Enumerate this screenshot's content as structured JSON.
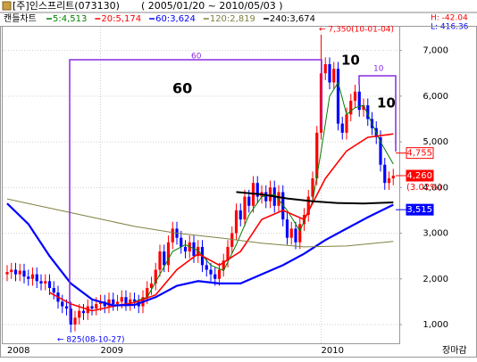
{
  "chart_data": {
    "type": "candlestick",
    "title": "[주]인스프리트(073130)",
    "subtitle": "( 2005/01/20 ~ 2010/05/03 )",
    "chart_label": "캔들차트",
    "stats": [
      "H: -42.04",
      "L: 416.36"
    ],
    "corner_label": "장마감",
    "categories": [
      "2008",
      null,
      null,
      null,
      null,
      null,
      null,
      null,
      null,
      null,
      null,
      null,
      null,
      null,
      null,
      null,
      null,
      null,
      null,
      null,
      null,
      null,
      "2009",
      null,
      null,
      null,
      null,
      null,
      null,
      null,
      null,
      null,
      null,
      null,
      null,
      null,
      null,
      null,
      null,
      null,
      null,
      null,
      null,
      null,
      null,
      null,
      null,
      null,
      null,
      null,
      null,
      null,
      null,
      null,
      null,
      null,
      null,
      null,
      null,
      null,
      null,
      null,
      null,
      null,
      null,
      null,
      null,
      null,
      null,
      null,
      null,
      null,
      null,
      null,
      "2010",
      null,
      null,
      null,
      null,
      null,
      null,
      null,
      null,
      null,
      null,
      null,
      null,
      null,
      null,
      null,
      null,
      null
    ],
    "ohlc": {
      "open": [
        2100,
        2150,
        2200,
        2100,
        2180,
        2050,
        2000,
        2100,
        1950,
        1900,
        1950,
        1800,
        1700,
        1500,
        1400,
        1350,
        1000,
        1150,
        1300,
        1250,
        1400,
        1350,
        1450,
        1500,
        1400,
        1550,
        1450,
        1500,
        1600,
        1450,
        1550,
        1500,
        1400,
        1600,
        1800,
        1900,
        2200,
        2600,
        2300,
        2800,
        3100,
        2900,
        2700,
        2600,
        2800,
        2500,
        2700,
        2300,
        2200,
        2100,
        2000,
        2200,
        2400,
        2700,
        3000,
        3500,
        3300,
        3800,
        3600,
        4100,
        3800,
        3900,
        3700,
        4000,
        3600,
        3900,
        3300,
        2900,
        3100,
        2800,
        3200,
        3400,
        3800,
        4200,
        5200,
        6500,
        6700,
        6300,
        6600,
        5400,
        5200,
        5600,
        5900,
        6100,
        5700,
        5800,
        5500,
        5300,
        5100,
        4500,
        4100,
        4200
      ],
      "high": [
        2300,
        2350,
        2350,
        2330,
        2330,
        2200,
        2250,
        2250,
        2100,
        2100,
        2100,
        1950,
        1850,
        1650,
        1550,
        1500,
        1300,
        1450,
        1450,
        1550,
        1550,
        1600,
        1650,
        1650,
        1700,
        1700,
        1650,
        1750,
        1750,
        1700,
        1700,
        1650,
        1750,
        1950,
        2050,
        2350,
        2750,
        2750,
        2950,
        3250,
        3250,
        3050,
        2850,
        2950,
        2950,
        2850,
        2850,
        2450,
        2350,
        2250,
        2350,
        2550,
        2850,
        3150,
        3650,
        3650,
        3950,
        3950,
        4250,
        4250,
        4050,
        4050,
        4150,
        4150,
        4050,
        4050,
        3450,
        3250,
        3250,
        3350,
        3550,
        3950,
        4350,
        5350,
        7350,
        6850,
        6850,
        6750,
        6750,
        5550,
        5750,
        6050,
        6250,
        6250,
        5950,
        5950,
        5650,
        5450,
        5250,
        4650,
        4350,
        4410
      ],
      "low": [
        1950,
        2000,
        1950,
        1950,
        1900,
        1850,
        1850,
        1800,
        1750,
        1750,
        1650,
        1550,
        1350,
        1250,
        1200,
        825,
        850,
        1000,
        1100,
        1100,
        1200,
        1200,
        1300,
        1250,
        1250,
        1300,
        1300,
        1350,
        1300,
        1300,
        1350,
        1250,
        1250,
        1450,
        1650,
        1750,
        2050,
        2150,
        2150,
        2650,
        2750,
        2550,
        2450,
        2450,
        2350,
        2350,
        2150,
        2050,
        1950,
        1850,
        1850,
        2050,
        2250,
        2550,
        2850,
        3150,
        3150,
        3450,
        3450,
        3650,
        3650,
        3550,
        3550,
        3450,
        3450,
        3150,
        2750,
        2750,
        2650,
        2650,
        3050,
        3250,
        3650,
        4050,
        5050,
        6350,
        6150,
        6150,
        5250,
        5050,
        5050,
        5450,
        5750,
        5550,
        5550,
        5350,
        5150,
        4950,
        4350,
        3950,
        3950,
        4050
      ],
      "close": [
        2150,
        2200,
        2100,
        2180,
        2050,
        2000,
        2100,
        1950,
        1900,
        1950,
        1800,
        1700,
        1500,
        1400,
        1350,
        1000,
        1150,
        1300,
        1250,
        1400,
        1350,
        1450,
        1500,
        1400,
        1550,
        1450,
        1500,
        1600,
        1450,
        1550,
        1500,
        1400,
        1600,
        1800,
        1900,
        2200,
        2600,
        2300,
        2800,
        3100,
        2900,
        2700,
        2600,
        2800,
        2500,
        2700,
        2300,
        2200,
        2100,
        2000,
        2200,
        2400,
        2700,
        3000,
        3500,
        3300,
        3800,
        3600,
        4100,
        3800,
        3900,
        3700,
        4000,
        3600,
        3900,
        3300,
        2900,
        3100,
        2800,
        3200,
        3400,
        3800,
        4200,
        5200,
        6500,
        6700,
        6300,
        6600,
        5400,
        5200,
        5600,
        5900,
        6100,
        5700,
        5800,
        5500,
        5300,
        5100,
        4500,
        4100,
        4200,
        4260
      ]
    },
    "up_color": "#ff0000",
    "down_color": "#0000ff",
    "moving_averages": [
      {
        "name": "5:4,513",
        "color": "#008000",
        "width": 1,
        "x": [
          30,
          33,
          36,
          39,
          42,
          45,
          48,
          51,
          54,
          57,
          60,
          63,
          66,
          69,
          72,
          74,
          76,
          78,
          80,
          82,
          84,
          86,
          88,
          91
        ],
        "values": [
          1500,
          1600,
          2100,
          2600,
          2750,
          2620,
          2300,
          2180,
          2750,
          3400,
          3800,
          3850,
          3500,
          3050,
          3700,
          4800,
          6000,
          6300,
          5600,
          5750,
          5800,
          5400,
          5000,
          4513
        ]
      },
      {
        "name": "20:5,174",
        "color": "#ff0000",
        "width": 1.6,
        "x": [
          10,
          15,
          20,
          25,
          30,
          35,
          40,
          45,
          50,
          55,
          60,
          65,
          70,
          75,
          80,
          85,
          91
        ],
        "values": [
          1700,
          1450,
          1300,
          1400,
          1480,
          1650,
          2200,
          2550,
          2300,
          2600,
          3300,
          3500,
          3300,
          4200,
          4800,
          5100,
          5174
        ]
      },
      {
        "name": "60:3,624",
        "color": "#0000ff",
        "width": 2.2,
        "x": [
          0,
          5,
          10,
          15,
          20,
          25,
          30,
          35,
          40,
          45,
          50,
          55,
          60,
          65,
          70,
          75,
          80,
          85,
          91
        ],
        "values": [
          3650,
          3200,
          2500,
          1900,
          1550,
          1420,
          1430,
          1600,
          1850,
          1950,
          1900,
          1900,
          2100,
          2300,
          2550,
          2850,
          3100,
          3350,
          3624
        ]
      },
      {
        "name": "120:2,819",
        "color": "#808040",
        "width": 1,
        "x": [
          0,
          10,
          20,
          30,
          40,
          50,
          60,
          70,
          80,
          91
        ],
        "values": [
          3750,
          3550,
          3350,
          3150,
          3000,
          2900,
          2780,
          2700,
          2720,
          2819
        ]
      },
      {
        "name": "240:3,674",
        "color": "#000000",
        "width": 2,
        "x": [
          54,
          60,
          66,
          72,
          78,
          84,
          91
        ],
        "values": [
          3900,
          3850,
          3760,
          3700,
          3660,
          3650,
          3674
        ]
      }
    ],
    "ylim": [
      590,
      7520
    ],
    "yticks": [
      {
        "value": 1000,
        "label": "1,000"
      },
      {
        "value": 2000,
        "label": "2,000"
      },
      {
        "value": 3000,
        "label": "3,000"
      },
      {
        "value": 4000,
        "label": "4,000"
      },
      {
        "value": 5000,
        "label": "5,000"
      },
      {
        "value": 6000,
        "label": "6,000"
      },
      {
        "value": 7000,
        "label": "7,000"
      }
    ],
    "grid": true,
    "price_tags": [
      {
        "value": 4755,
        "label": "4,755",
        "color": "#ff0000",
        "filled": false
      },
      {
        "value": 4260,
        "label": "4,260",
        "color": "#ff0000",
        "filled": true
      },
      {
        "value": 3515,
        "label": "3,515",
        "color": "#0000ff",
        "filled": true
      }
    ],
    "change_label": "(3.02%)",
    "annotations": [
      "← 7,350(10-01-04)",
      "← 825(08-10-27)",
      "60",
      "60",
      "10",
      "10",
      "10"
    ]
  }
}
